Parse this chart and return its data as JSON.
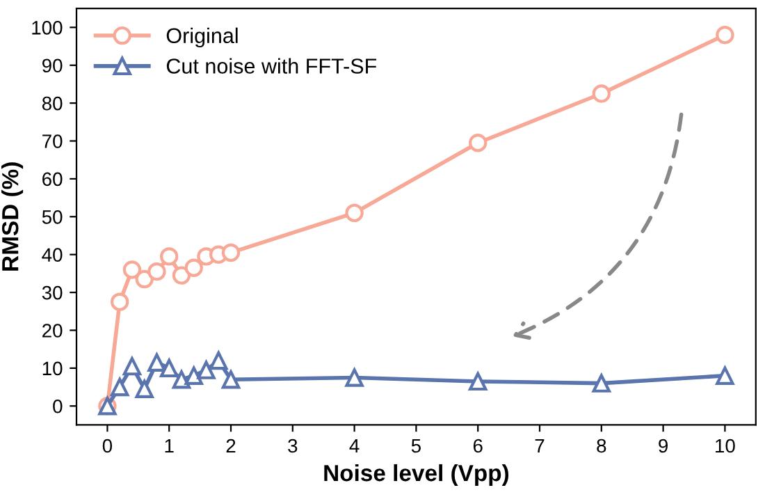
{
  "chart_data": {
    "type": "line",
    "xlabel": "Noise level (Vpp)",
    "ylabel": "RMSD (%)",
    "x": [
      0,
      0.2,
      0.4,
      0.6,
      0.8,
      1.0,
      1.2,
      1.4,
      1.6,
      1.8,
      2,
      4,
      6,
      8,
      10
    ],
    "series": [
      {
        "name": "Original",
        "color": "#f7a896",
        "marker": "circle",
        "values": [
          0,
          27.5,
          36,
          33.5,
          35.5,
          39.5,
          34.5,
          36.5,
          39.5,
          40,
          40.5,
          51,
          69.5,
          82.5,
          98
        ]
      },
      {
        "name": "Cut noise with FFT-SF",
        "color": "#5a74ad",
        "marker": "triangle",
        "values": [
          0,
          5,
          10.5,
          4.5,
          11.5,
          10,
          7,
          8,
          9.5,
          12,
          7,
          7.5,
          6.5,
          6,
          8
        ]
      }
    ],
    "xlim": [
      -0.5,
      10.5
    ],
    "ylim": [
      -5,
      105
    ],
    "xticks": [
      0,
      1,
      2,
      3,
      4,
      5,
      6,
      7,
      8,
      9,
      10
    ],
    "yticks": [
      0,
      10,
      20,
      30,
      40,
      50,
      60,
      70,
      80,
      90,
      100
    ],
    "legend": "top left",
    "grid": false
  }
}
